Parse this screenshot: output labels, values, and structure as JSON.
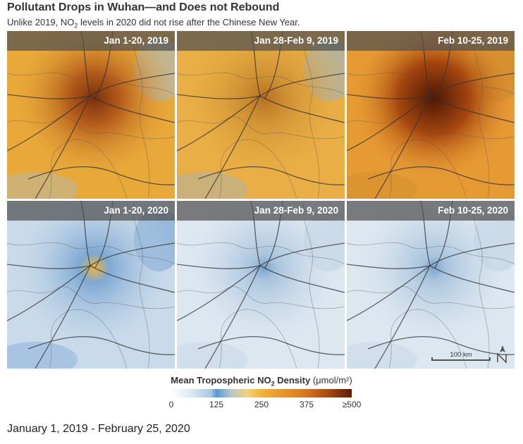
{
  "header": {
    "title": "Pollutant Drops in Wuhan—and Does not Rebound",
    "subtitle_before": "Unlike 2019, NO",
    "subtitle_sub": "2",
    "subtitle_after": " levels in 2020 did not rise after the Chinese New Year."
  },
  "panels": [
    {
      "label": "Jan 1-20, 2019",
      "year": 2019,
      "level": "high-moderate"
    },
    {
      "label": "Jan 28-Feb 9, 2019",
      "year": 2019,
      "level": "moderate"
    },
    {
      "label": "Feb 10-25, 2019",
      "year": 2019,
      "level": "very-high"
    },
    {
      "label": "Jan 1-20, 2020",
      "year": 2020,
      "level": "moderate-low"
    },
    {
      "label": "Jan 28-Feb 9, 2020",
      "year": 2020,
      "level": "low"
    },
    {
      "label": "Feb 10-25, 2020",
      "year": 2020,
      "level": "low"
    }
  ],
  "scale": {
    "label": "100 km"
  },
  "legend": {
    "title_before": "Mean Tropospheric NO",
    "title_sub": "2",
    "title_after": " Density",
    "unit": "(μmol/m²)",
    "ticks": [
      "0",
      "125",
      "250",
      "375",
      "≥500"
    ],
    "colors": {
      "low": "#ffffff",
      "mid_blue": "#5b97cf",
      "mid": "#efb23a",
      "high": "#5a1e05"
    }
  },
  "caption": "January 1, 2019 - February 25, 2020",
  "icons": {
    "north_arrow": "north-arrow-icon"
  }
}
